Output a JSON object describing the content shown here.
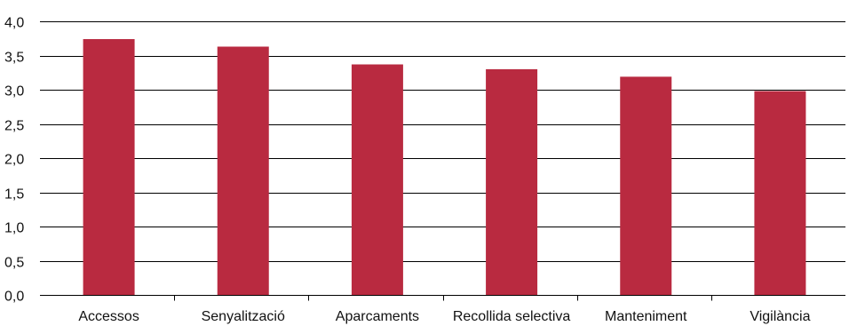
{
  "chart_data": {
    "type": "bar",
    "title": "",
    "xlabel": "",
    "ylabel": "",
    "categories": [
      "Accessos",
      "Senyalització",
      "Aparcaments",
      "Recollida selectiva",
      "Manteniment",
      "Vigilància"
    ],
    "values": [
      3.74,
      3.63,
      3.37,
      3.3,
      3.19,
      2.98
    ],
    "ylim": [
      0,
      4
    ],
    "yticks": [
      0,
      0.5,
      1.0,
      1.5,
      2.0,
      2.5,
      3.0,
      3.5,
      4.0
    ],
    "ytick_labels": [
      "0,0",
      "0,5",
      "1,0",
      "1,5",
      "2,0",
      "2,5",
      "3,0",
      "3,5",
      "4,0"
    ],
    "grid": true,
    "bar_color": "#b92a40",
    "gridline_color": "#000000"
  }
}
